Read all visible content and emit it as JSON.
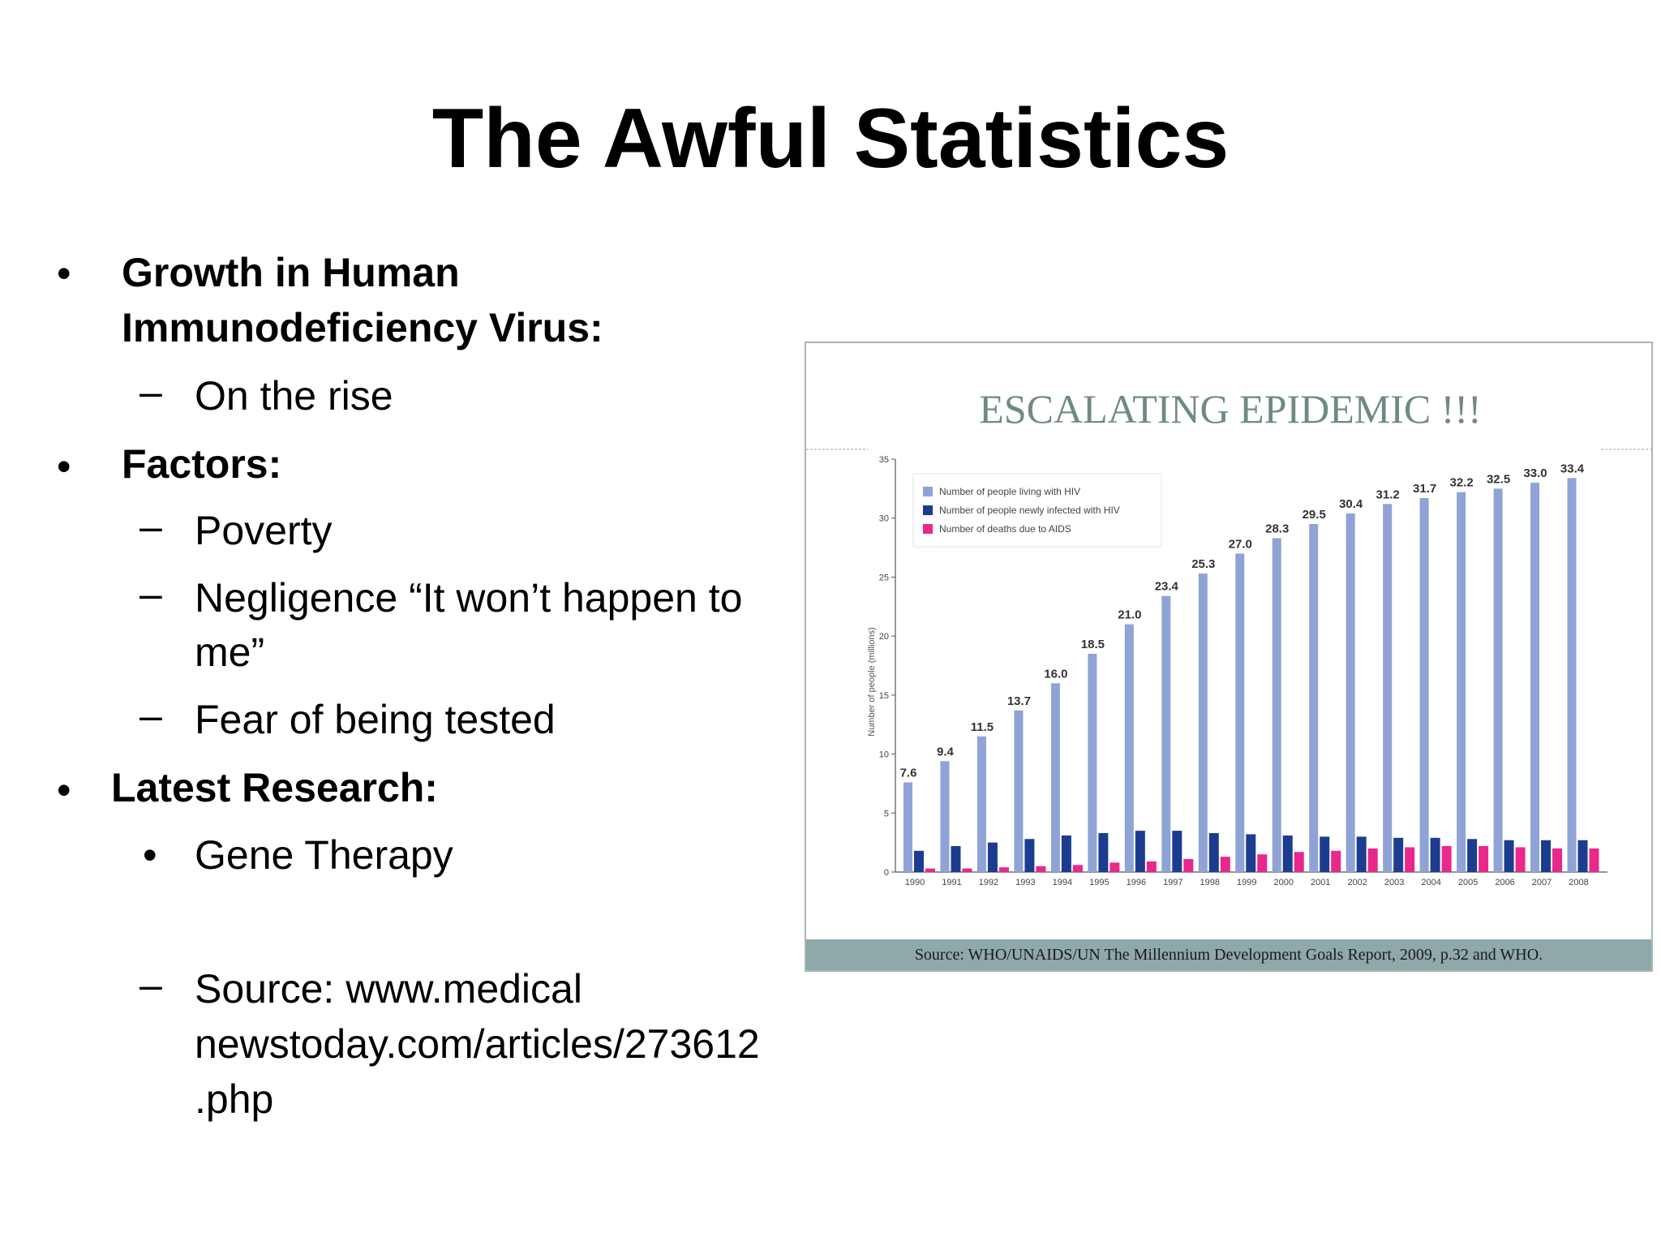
{
  "slide": {
    "title": "The Awful Statistics",
    "bullets": [
      {
        "text1": "Growth in Human",
        "text2": "Immunodeficiency Virus:"
      },
      {
        "text": "Factors:"
      },
      {
        "text": "Latest Research:"
      }
    ],
    "sub_items": {
      "rise": "On the rise",
      "poverty": "Poverty",
      "negligence1": "Negligence “It won’t happen to",
      "negligence2": "me”",
      "fear": "Fear of being tested",
      "gene": "Gene Therapy",
      "source1": "Source: www.medical",
      "source2": "newstoday.com/articles/273612",
      "source3": ".php"
    },
    "bullet_glyph": "•",
    "dash_glyph": "–"
  },
  "chart_data": {
    "type": "bar",
    "title": "ESCALATING EPIDEMIC !!!",
    "ylabel": "Number of people (millions)",
    "ylim": [
      0,
      35
    ],
    "yticks": [
      0,
      5,
      10,
      15,
      20,
      25,
      30,
      35
    ],
    "categories": [
      "1990",
      "1991",
      "1992",
      "1993",
      "1994",
      "1995",
      "1996",
      "1997",
      "1998",
      "1999",
      "2000",
      "2001",
      "2002",
      "2003",
      "2004",
      "2005",
      "2006",
      "2007",
      "2008"
    ],
    "series": [
      {
        "name": "Number of people living with HIV",
        "color": "#8fa3d6",
        "values": [
          7.6,
          9.4,
          11.5,
          13.7,
          16.0,
          18.5,
          21.0,
          23.4,
          25.3,
          27.0,
          28.3,
          29.5,
          30.4,
          31.2,
          31.7,
          32.2,
          32.5,
          33.0,
          33.4
        ],
        "labels": [
          "7.6",
          "9.4",
          "11.5",
          "13.7",
          "16.0",
          "18.5",
          "21.0",
          "23.4",
          "25.3",
          "27.0",
          "28.3",
          "29.5",
          "30.4",
          "31.2",
          "31.7",
          "32.2",
          "32.5",
          "33.0",
          "33.4"
        ]
      },
      {
        "name": "Number of people newly infected with HIV",
        "color": "#1c3d8f",
        "values": [
          1.8,
          2.2,
          2.5,
          2.8,
          3.1,
          3.3,
          3.5,
          3.5,
          3.3,
          3.2,
          3.1,
          3.0,
          3.0,
          2.9,
          2.9,
          2.8,
          2.7,
          2.7,
          2.7
        ]
      },
      {
        "name": "Number of deaths due to AIDS",
        "color": "#e8288a",
        "values": [
          0.3,
          0.3,
          0.4,
          0.5,
          0.6,
          0.8,
          0.9,
          1.1,
          1.3,
          1.5,
          1.7,
          1.8,
          2.0,
          2.1,
          2.2,
          2.2,
          2.1,
          2.0,
          2.0
        ]
      }
    ],
    "legend_position": "top-left",
    "grid": false,
    "source": "Source: WHO/UNAIDS/UN The Millennium Development Goals Report, 2009, p.32 and WHO."
  }
}
